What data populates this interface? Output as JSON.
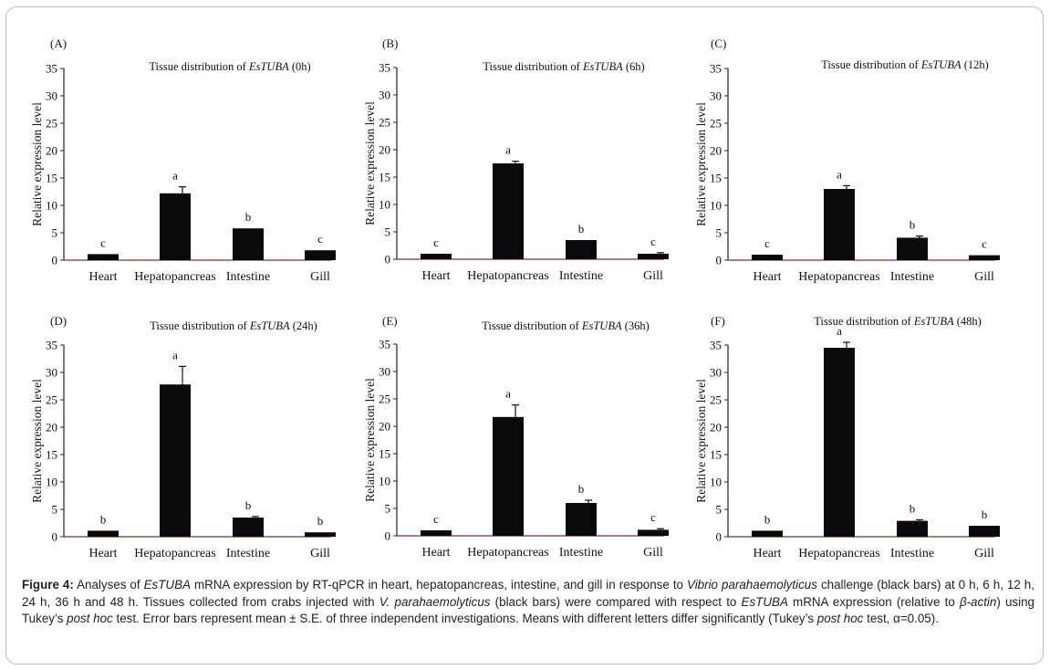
{
  "figure_caption": {
    "label": "Figure 4:",
    "text_parts": [
      {
        "t": " Analyses of ",
        "i": false
      },
      {
        "t": "EsTUBA",
        "i": true
      },
      {
        "t": " mRNA expression by RT-qPCR in heart, hepatopancreas, intestine, and gill in response to ",
        "i": false
      },
      {
        "t": "Vibrio parahaemolyticus",
        "i": true
      },
      {
        "t": " challenge (black bars) at 0 h, 6 h, 12 h, 24 h, 36 h and 48 h. Tissues collected from crabs injected with ",
        "i": false
      },
      {
        "t": "V. parahaemolyticus",
        "i": true
      },
      {
        "t": " (black bars) were compared with respect to ",
        "i": false
      },
      {
        "t": "EsTUBA",
        "i": true
      },
      {
        "t": " mRNA expression (relative to ",
        "i": false
      },
      {
        "t": "β-actin",
        "i": true
      },
      {
        "t": ") using Tukey’s ",
        "i": false
      },
      {
        "t": "post hoc",
        "i": true
      },
      {
        "t": " test. Error bars represent mean ± S.E. of three independent investigations.  Means with different letters differ significantly (Tukey’s ",
        "i": false
      },
      {
        "t": "post hoc",
        "i": true
      },
      {
        "t": " test, α=0.05).",
        "i": false
      }
    ]
  },
  "chart_data": [
    {
      "type": "bar",
      "panel": "(A)",
      "title_prefix": "Tissue distribution of ",
      "title_gene": "EsTUBA",
      "title_suffix": " (0h)",
      "categories": [
        "Heart",
        "Hepatopancreas",
        "Intestine",
        "Gill"
      ],
      "values": [
        1.1,
        12.2,
        5.8,
        1.8
      ],
      "errors": [
        0,
        1.2,
        0,
        0
      ],
      "letters": [
        "c",
        "a",
        "b",
        "c"
      ],
      "ylabel": "Relative expression level",
      "ylim": [
        0,
        35
      ],
      "yticks": [
        0,
        5,
        10,
        15,
        20,
        25,
        30,
        35
      ]
    },
    {
      "type": "bar",
      "panel": "(B)",
      "title_prefix": "Tissue distribution of ",
      "title_gene": "EsTUBA",
      "title_suffix": " (6h)",
      "categories": [
        "Heart",
        "Hepatopancreas",
        "Intestine",
        "Gill"
      ],
      "values": [
        1.0,
        17.5,
        3.5,
        1.0
      ],
      "errors": [
        0,
        0.4,
        0,
        0.2
      ],
      "letters": [
        "c",
        "a",
        "b",
        "c"
      ],
      "ylabel": "Relative expression level",
      "ylim": [
        0,
        35
      ],
      "yticks": [
        0,
        5,
        10,
        15,
        20,
        25,
        30,
        35
      ]
    },
    {
      "type": "bar",
      "panel": "(C)",
      "title_prefix": "Tissue distribution of ",
      "title_gene": "EsTUBA",
      "title_suffix": " (12h)",
      "categories": [
        "Heart",
        "Hepatopancreas",
        "Intestine",
        "Gill"
      ],
      "values": [
        1.0,
        13.0,
        4.1,
        0.9
      ],
      "errors": [
        0,
        0.6,
        0.3,
        0
      ],
      "letters": [
        "c",
        "a",
        "b",
        "c"
      ],
      "ylabel": "Relative expression level",
      "ylim": [
        0,
        35
      ],
      "yticks": [
        0,
        5,
        10,
        15,
        20,
        25,
        30,
        35
      ]
    },
    {
      "type": "bar",
      "panel": "(D)",
      "title_prefix": "Tissue distribution of ",
      "title_gene": "EsTUBA",
      "title_suffix": " (24h)",
      "categories": [
        "Heart",
        "Hepatopancreas",
        "Intestine",
        "Gill"
      ],
      "values": [
        1.1,
        27.8,
        3.5,
        0.8
      ],
      "errors": [
        0,
        3.3,
        0.2,
        0
      ],
      "letters": [
        "b",
        "a",
        "b",
        "b"
      ],
      "ylabel": "Relative expression level",
      "ylim": [
        0,
        35
      ],
      "yticks": [
        0,
        5,
        10,
        15,
        20,
        25,
        30,
        35
      ]
    },
    {
      "type": "bar",
      "panel": "(E)",
      "title_prefix": "Tissue distribution of ",
      "title_gene": "EsTUBA",
      "title_suffix": " (36h)",
      "categories": [
        "Heart",
        "Hepatopancreas",
        "Intestine",
        "Gill"
      ],
      "values": [
        1.0,
        21.7,
        6.0,
        1.1
      ],
      "errors": [
        0,
        2.2,
        0.5,
        0.2
      ],
      "letters": [
        "c",
        "a",
        "b",
        "c"
      ],
      "ylabel": "Relative expression level",
      "ylim": [
        0,
        35
      ],
      "yticks": [
        0,
        5,
        10,
        15,
        20,
        25,
        30,
        35
      ]
    },
    {
      "type": "bar",
      "panel": "(F)",
      "title_prefix": "Tissue distribution of ",
      "title_gene": "EsTUBA",
      "title_suffix": " (48h)",
      "categories": [
        "Heart",
        "Hepatopancreas",
        "Intestine",
        "Gill"
      ],
      "values": [
        1.1,
        34.5,
        2.9,
        2.0
      ],
      "errors": [
        0,
        1.0,
        0.2,
        0
      ],
      "letters": [
        "b",
        "a",
        "b",
        "b"
      ],
      "ylabel": "Relative expression level",
      "ylim": [
        0,
        35
      ],
      "yticks": [
        0,
        5,
        10,
        15,
        20,
        25,
        30,
        35
      ]
    }
  ]
}
